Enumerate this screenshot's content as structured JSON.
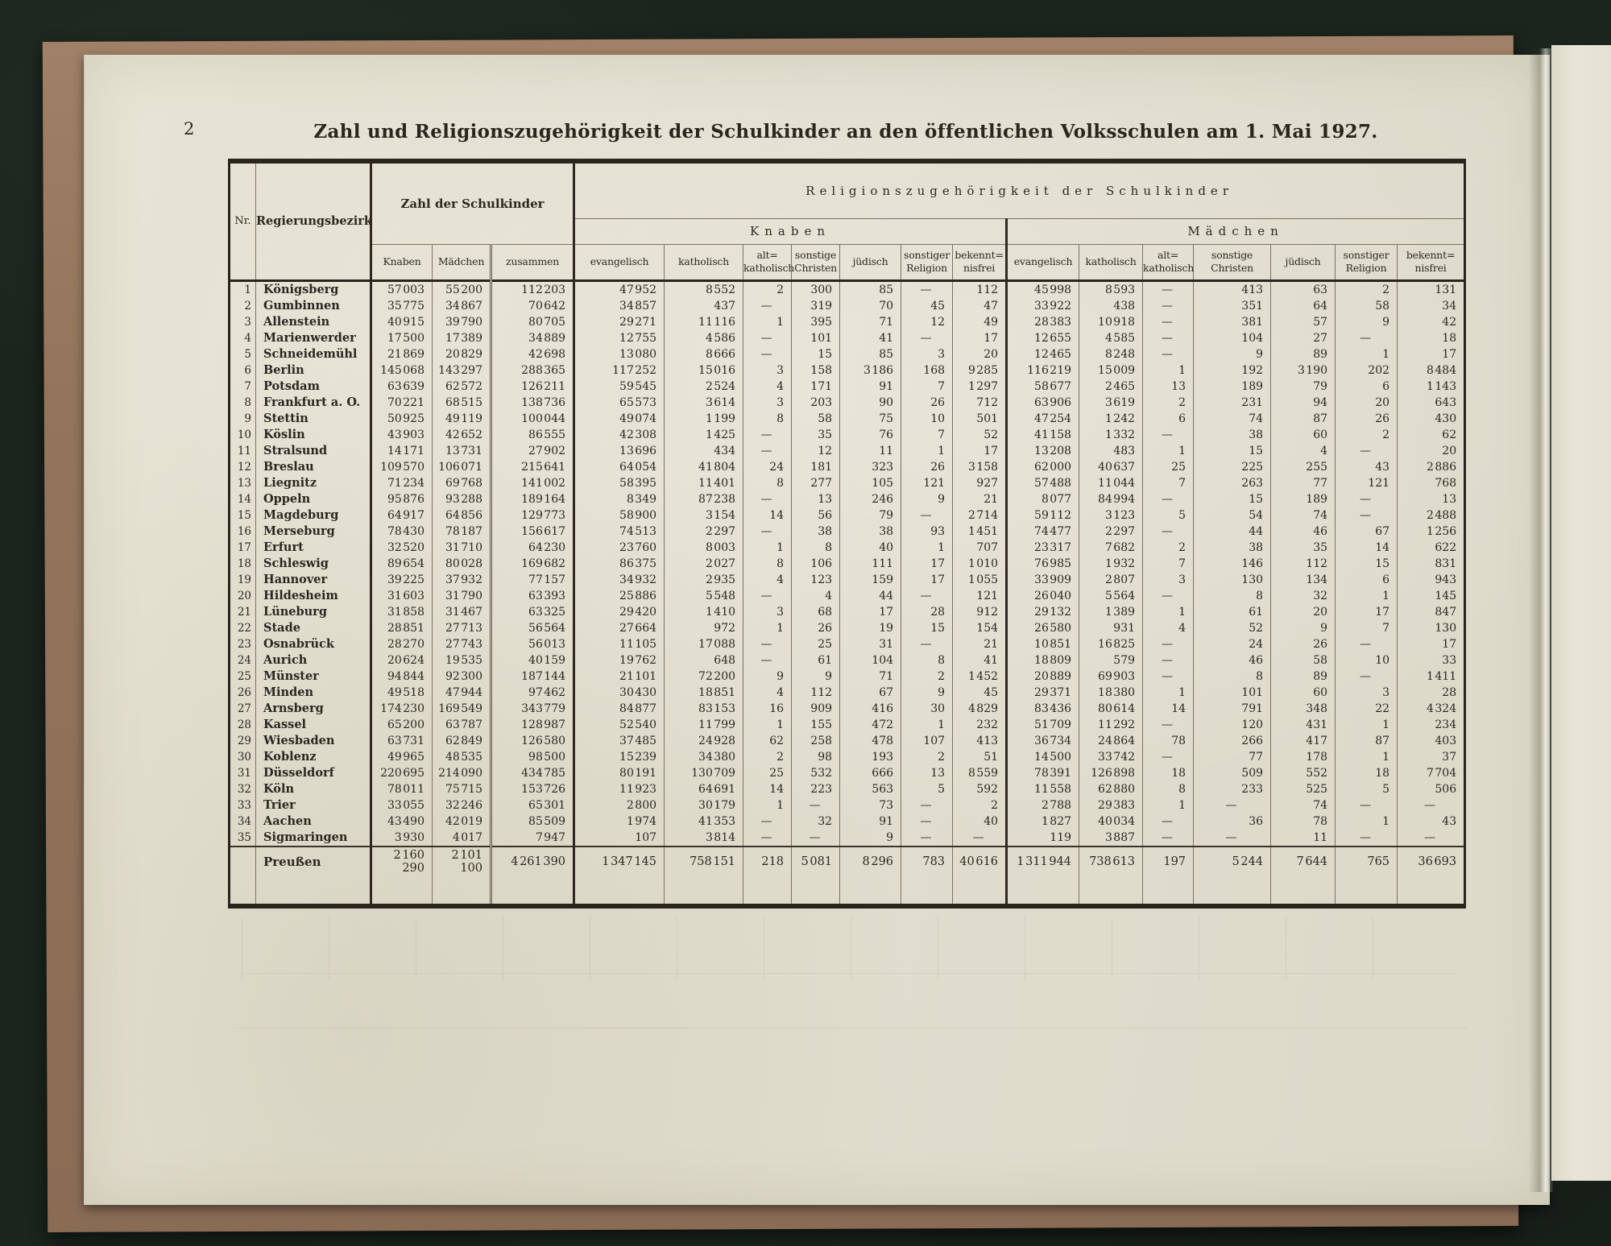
{
  "page": {
    "number": "2",
    "title": "Zahl und Religionszugehörigkeit der Schulkinder an den öffentlichen Volksschulen am 1. Mai 1927."
  },
  "table": {
    "header": {
      "nr": "Nr.",
      "bezirk": "Regierungsbezirk",
      "count_group": "Zahl der Schulkinder",
      "religion_group": "Religionszugehörigkeit der Schulkinder",
      "boys_group": "Knaben",
      "girls_group": "Mädchen",
      "count_cols": [
        "Knaben",
        "Mädchen",
        "zusammen"
      ],
      "religion_cols": [
        "evangelisch",
        "katholisch",
        "alt=\nkatholisch",
        "sonstige\nChristen",
        "jüdisch",
        "sonstiger\nReligion",
        "bekennt=\nnisfrei"
      ]
    },
    "rows": [
      {
        "nr": "1",
        "bezirk": "Königsberg",
        "values": [
          "57 003",
          "55 200",
          "112 203",
          "47 952",
          "8 552",
          "2",
          "300",
          "85",
          "—",
          "112",
          "45 998",
          "8 593",
          "—",
          "413",
          "63",
          "2",
          "131"
        ]
      },
      {
        "nr": "2",
        "bezirk": "Gumbinnen",
        "values": [
          "35 775",
          "34 867",
          "70 642",
          "34 857",
          "437",
          "—",
          "319",
          "70",
          "45",
          "47",
          "33 922",
          "438",
          "—",
          "351",
          "64",
          "58",
          "34"
        ]
      },
      {
        "nr": "3",
        "bezirk": "Allenstein",
        "values": [
          "40 915",
          "39 790",
          "80 705",
          "29 271",
          "11 116",
          "1",
          "395",
          "71",
          "12",
          "49",
          "28 383",
          "10 918",
          "—",
          "381",
          "57",
          "9",
          "42"
        ]
      },
      {
        "nr": "4",
        "bezirk": "Marienwerder",
        "values": [
          "17 500",
          "17 389",
          "34 889",
          "12 755",
          "4 586",
          "—",
          "101",
          "41",
          "—",
          "17",
          "12 655",
          "4 585",
          "—",
          "104",
          "27",
          "—",
          "18"
        ]
      },
      {
        "nr": "5",
        "bezirk": "Schneidemühl",
        "values": [
          "21 869",
          "20 829",
          "42 698",
          "13 080",
          "8 666",
          "—",
          "15",
          "85",
          "3",
          "20",
          "12 465",
          "8 248",
          "—",
          "9",
          "89",
          "1",
          "17"
        ]
      },
      {
        "nr": "6",
        "bezirk": "Berlin",
        "values": [
          "145 068",
          "143 297",
          "288 365",
          "117 252",
          "15 016",
          "3",
          "158",
          "3 186",
          "168",
          "9 285",
          "116 219",
          "15 009",
          "1",
          "192",
          "3 190",
          "202",
          "8 484"
        ]
      },
      {
        "nr": "7",
        "bezirk": "Potsdam",
        "values": [
          "63 639",
          "62 572",
          "126 211",
          "59 545",
          "2 524",
          "4",
          "171",
          "91",
          "7",
          "1 297",
          "58 677",
          "2 465",
          "13",
          "189",
          "79",
          "6",
          "1 143"
        ]
      },
      {
        "nr": "8",
        "bezirk": "Frankfurt a. O.",
        "values": [
          "70 221",
          "68 515",
          "138 736",
          "65 573",
          "3 614",
          "3",
          "203",
          "90",
          "26",
          "712",
          "63 906",
          "3 619",
          "2",
          "231",
          "94",
          "20",
          "643"
        ]
      },
      {
        "nr": "9",
        "bezirk": "Stettin",
        "values": [
          "50 925",
          "49 119",
          "100 044",
          "49 074",
          "1 199",
          "8",
          "58",
          "75",
          "10",
          "501",
          "47 254",
          "1 242",
          "6",
          "74",
          "87",
          "26",
          "430"
        ]
      },
      {
        "nr": "10",
        "bezirk": "Köslin",
        "values": [
          "43 903",
          "42 652",
          "86 555",
          "42 308",
          "1 425",
          "—",
          "35",
          "76",
          "7",
          "52",
          "41 158",
          "1 332",
          "—",
          "38",
          "60",
          "2",
          "62"
        ]
      },
      {
        "nr": "11",
        "bezirk": "Stralsund",
        "values": [
          "14 171",
          "13 731",
          "27 902",
          "13 696",
          "434",
          "—",
          "12",
          "11",
          "1",
          "17",
          "13 208",
          "483",
          "1",
          "15",
          "4",
          "—",
          "20"
        ]
      },
      {
        "nr": "12",
        "bezirk": "Breslau",
        "values": [
          "109 570",
          "106 071",
          "215 641",
          "64 054",
          "41 804",
          "24",
          "181",
          "323",
          "26",
          "3 158",
          "62 000",
          "40 637",
          "25",
          "225",
          "255",
          "43",
          "2 886"
        ]
      },
      {
        "nr": "13",
        "bezirk": "Liegnitz",
        "values": [
          "71 234",
          "69 768",
          "141 002",
          "58 395",
          "11 401",
          "8",
          "277",
          "105",
          "121",
          "927",
          "57 488",
          "11 044",
          "7",
          "263",
          "77",
          "121",
          "768"
        ]
      },
      {
        "nr": "14",
        "bezirk": "Oppeln",
        "values": [
          "95 876",
          "93 288",
          "189 164",
          "8 349",
          "87 238",
          "—",
          "13",
          "246",
          "9",
          "21",
          "8 077",
          "84 994",
          "—",
          "15",
          "189",
          "—",
          "13"
        ]
      },
      {
        "nr": "15",
        "bezirk": "Magdeburg",
        "values": [
          "64 917",
          "64 856",
          "129 773",
          "58 900",
          "3 154",
          "14",
          "56",
          "79",
          "—",
          "2 714",
          "59 112",
          "3 123",
          "5",
          "54",
          "74",
          "—",
          "2 488"
        ]
      },
      {
        "nr": "16",
        "bezirk": "Merseburg",
        "values": [
          "78 430",
          "78 187",
          "156 617",
          "74 513",
          "2 297",
          "—",
          "38",
          "38",
          "93",
          "1 451",
          "74 477",
          "2 297",
          "—",
          "44",
          "46",
          "67",
          "1 256"
        ]
      },
      {
        "nr": "17",
        "bezirk": "Erfurt",
        "values": [
          "32 520",
          "31 710",
          "64 230",
          "23 760",
          "8 003",
          "1",
          "8",
          "40",
          "1",
          "707",
          "23 317",
          "7 682",
          "2",
          "38",
          "35",
          "14",
          "622"
        ]
      },
      {
        "nr": "18",
        "bezirk": "Schleswig",
        "values": [
          "89 654",
          "80 028",
          "169 682",
          "86 375",
          "2 027",
          "8",
          "106",
          "111",
          "17",
          "1 010",
          "76 985",
          "1 932",
          "7",
          "146",
          "112",
          "15",
          "831"
        ]
      },
      {
        "nr": "19",
        "bezirk": "Hannover",
        "values": [
          "39 225",
          "37 932",
          "77 157",
          "34 932",
          "2 935",
          "4",
          "123",
          "159",
          "17",
          "1 055",
          "33 909",
          "2 807",
          "3",
          "130",
          "134",
          "6",
          "943"
        ]
      },
      {
        "nr": "20",
        "bezirk": "Hildesheim",
        "values": [
          "31 603",
          "31 790",
          "63 393",
          "25 886",
          "5 548",
          "—",
          "4",
          "44",
          "—",
          "121",
          "26 040",
          "5 564",
          "—",
          "8",
          "32",
          "1",
          "145"
        ]
      },
      {
        "nr": "21",
        "bezirk": "Lüneburg",
        "values": [
          "31 858",
          "31 467",
          "63 325",
          "29 420",
          "1 410",
          "3",
          "68",
          "17",
          "28",
          "912",
          "29 132",
          "1 389",
          "1",
          "61",
          "20",
          "17",
          "847"
        ]
      },
      {
        "nr": "22",
        "bezirk": "Stade",
        "values": [
          "28 851",
          "27 713",
          "56 564",
          "27 664",
          "972",
          "1",
          "26",
          "19",
          "15",
          "154",
          "26 580",
          "931",
          "4",
          "52",
          "9",
          "7",
          "130"
        ]
      },
      {
        "nr": "23",
        "bezirk": "Osnabrück",
        "values": [
          "28 270",
          "27 743",
          "56 013",
          "11 105",
          "17 088",
          "—",
          "25",
          "31",
          "—",
          "21",
          "10 851",
          "16 825",
          "—",
          "24",
          "26",
          "—",
          "17"
        ]
      },
      {
        "nr": "24",
        "bezirk": "Aurich",
        "values": [
          "20 624",
          "19 535",
          "40 159",
          "19 762",
          "648",
          "—",
          "61",
          "104",
          "8",
          "41",
          "18 809",
          "579",
          "—",
          "46",
          "58",
          "10",
          "33"
        ]
      },
      {
        "nr": "25",
        "bezirk": "Münster",
        "values": [
          "94 844",
          "92 300",
          "187 144",
          "21 101",
          "72 200",
          "9",
          "9",
          "71",
          "2",
          "1 452",
          "20 889",
          "69 903",
          "—",
          "8",
          "89",
          "—",
          "1 411"
        ]
      },
      {
        "nr": "26",
        "bezirk": "Minden",
        "values": [
          "49 518",
          "47 944",
          "97 462",
          "30 430",
          "18 851",
          "4",
          "112",
          "67",
          "9",
          "45",
          "29 371",
          "18 380",
          "1",
          "101",
          "60",
          "3",
          "28"
        ]
      },
      {
        "nr": "27",
        "bezirk": "Arnsberg",
        "values": [
          "174 230",
          "169 549",
          "343 779",
          "84 877",
          "83 153",
          "16",
          "909",
          "416",
          "30",
          "4 829",
          "83 436",
          "80 614",
          "14",
          "791",
          "348",
          "22",
          "4 324"
        ]
      },
      {
        "nr": "28",
        "bezirk": "Kassel",
        "values": [
          "65 200",
          "63 787",
          "128 987",
          "52 540",
          "11 799",
          "1",
          "155",
          "472",
          "1",
          "232",
          "51 709",
          "11 292",
          "—",
          "120",
          "431",
          "1",
          "234"
        ]
      },
      {
        "nr": "29",
        "bezirk": "Wiesbaden",
        "values": [
          "63 731",
          "62 849",
          "126 580",
          "37 485",
          "24 928",
          "62",
          "258",
          "478",
          "107",
          "413",
          "36 734",
          "24 864",
          "78",
          "266",
          "417",
          "87",
          "403"
        ]
      },
      {
        "nr": "30",
        "bezirk": "Koblenz",
        "values": [
          "49 965",
          "48 535",
          "98 500",
          "15 239",
          "34 380",
          "2",
          "98",
          "193",
          "2",
          "51",
          "14 500",
          "33 742",
          "—",
          "77",
          "178",
          "1",
          "37"
        ]
      },
      {
        "nr": "31",
        "bezirk": "Düsseldorf",
        "values": [
          "220 695",
          "214 090",
          "434 785",
          "80 191",
          "130 709",
          "25",
          "532",
          "666",
          "13",
          "8 559",
          "78 391",
          "126 898",
          "18",
          "509",
          "552",
          "18",
          "7 704"
        ]
      },
      {
        "nr": "32",
        "bezirk": "Köln",
        "values": [
          "78 011",
          "75 715",
          "153 726",
          "11 923",
          "64 691",
          "14",
          "223",
          "563",
          "5",
          "592",
          "11 558",
          "62 880",
          "8",
          "233",
          "525",
          "5",
          "506"
        ]
      },
      {
        "nr": "33",
        "bezirk": "Trier",
        "values": [
          "33 055",
          "32 246",
          "65 301",
          "2 800",
          "30 179",
          "1",
          "—",
          "73",
          "—",
          "2",
          "2 788",
          "29 383",
          "1",
          "—",
          "74",
          "—",
          "—"
        ]
      },
      {
        "nr": "34",
        "bezirk": "Aachen",
        "values": [
          "43 490",
          "42 019",
          "85 509",
          "1 974",
          "41 353",
          "—",
          "32",
          "91",
          "—",
          "40",
          "1 827",
          "40 034",
          "—",
          "36",
          "78",
          "1",
          "43"
        ]
      },
      {
        "nr": "35",
        "bezirk": "Sigmaringen",
        "values": [
          "3 930",
          "4 017",
          "7 947",
          "107",
          "3 814",
          "—",
          "—",
          "9",
          "—",
          "—",
          "119",
          "3 887",
          "—",
          "—",
          "11",
          "—",
          "—"
        ]
      }
    ],
    "total": {
      "label": "Preußen",
      "values": [
        "2 160 290",
        "2 101 100",
        "4 261 390",
        "1 347 145",
        "758 151",
        "218",
        "5 081",
        "8 296",
        "783",
        "40 616",
        "1 311 944",
        "738 613",
        "197",
        "5 244",
        "7 644",
        "765",
        "36 693"
      ]
    }
  }
}
